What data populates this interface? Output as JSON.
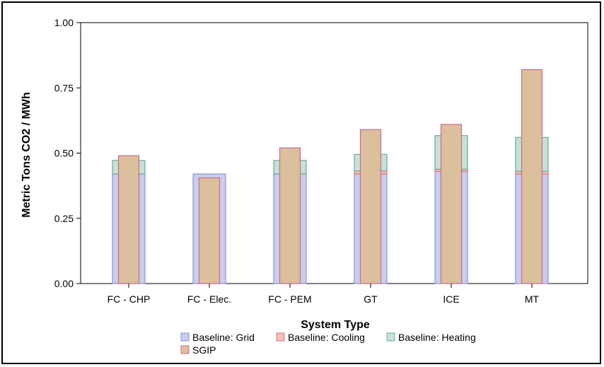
{
  "chart_data": {
    "type": "bar",
    "xlabel": "System Type",
    "ylabel": "Metric Tons CO2 / MWh",
    "ylim": [
      0,
      1.0
    ],
    "yticks": [
      "0.00",
      "0.25",
      "0.50",
      "0.75",
      "1.00"
    ],
    "categories": [
      "FC - CHP",
      "FC - Elec.",
      "FC - PEM",
      "GT",
      "ICE",
      "MT"
    ],
    "series": [
      {
        "name": "Baseline: Grid",
        "color": "#c9cdee",
        "stroke": "#8b93d6",
        "values": [
          0.42,
          0.42,
          0.42,
          0.42,
          0.43,
          0.42
        ]
      },
      {
        "name": "Baseline: Cooling",
        "color": "#f3c2c0",
        "stroke": "#d9736f",
        "values": [
          0.0,
          0.0,
          0.0,
          0.012,
          0.008,
          0.01
        ]
      },
      {
        "name": "Baseline: Heating",
        "color": "#c7e1d8",
        "stroke": "#6ba894",
        "values": [
          0.052,
          0.0,
          0.052,
          0.063,
          0.129,
          0.13
        ]
      },
      {
        "name": "SGIP",
        "color": "#dcbf9d",
        "stroke": "#c86d8a",
        "values": [
          0.49,
          0.405,
          0.52,
          0.59,
          0.61,
          0.82
        ]
      }
    ],
    "legend_position": "bottom",
    "grid": false
  }
}
